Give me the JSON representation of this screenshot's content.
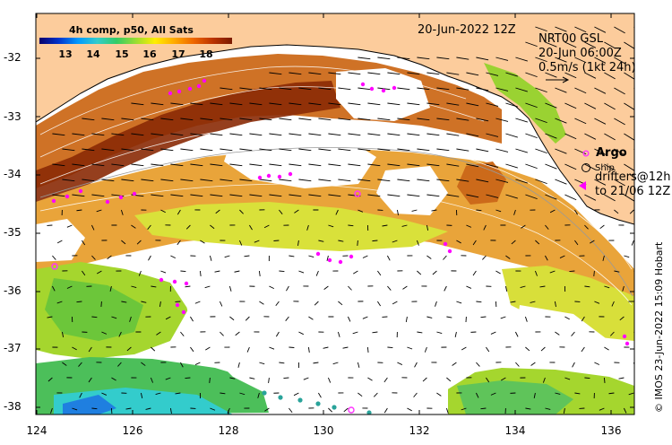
{
  "map": {
    "title_date": "20-Jun-2022 12Z",
    "colorbar": {
      "title": "4h comp, p50, All Sats",
      "ticks": [
        "13",
        "14",
        "15",
        "16",
        "17",
        "18"
      ],
      "colors": [
        "#08006b",
        "#0033cc",
        "#0099ff",
        "#33cccc",
        "#33cc66",
        "#99dd33",
        "#ffee00",
        "#ffaa00",
        "#ee6600",
        "#bb3300",
        "#7a1a00"
      ]
    },
    "current_info": {
      "line1": "NRT00 GSL",
      "line2": "20-Jun 06:00Z",
      "line3": "0.5m/s (1kt 24h)"
    },
    "legend": {
      "argo": "Argo",
      "ship": "Ship",
      "drifters_line1": "drifters@12h",
      "drifters_line2": "to 21/06 12Z"
    },
    "y_ticks": [
      "-32",
      "-33",
      "-34",
      "-35",
      "-36",
      "-37",
      "-38"
    ],
    "x_ticks": [
      "124",
      "126",
      "128",
      "130",
      "132",
      "134",
      "136"
    ],
    "credit": "© IMOS 23-Jun-2022 15:09 Hobart",
    "colors": {
      "land": "#fccc9c",
      "coast": "#000000",
      "argo": "#ff33ff",
      "drifter": "#ff00ff"
    }
  }
}
